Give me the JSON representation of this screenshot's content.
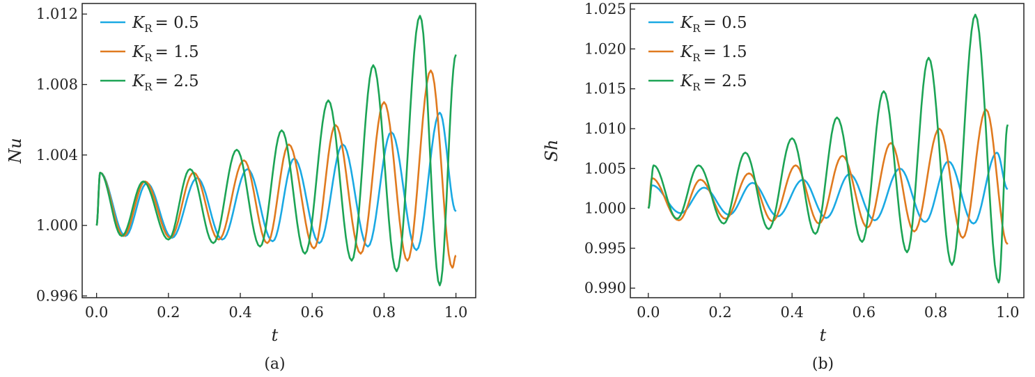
{
  "chart_data": [
    {
      "type": "line",
      "caption": "(a)",
      "xlabel": "t",
      "ylabel": "Nu",
      "xlim": [
        -0.04,
        1.055
      ],
      "ylim": [
        0.9959,
        1.0126
      ],
      "xticks": [
        0.0,
        0.2,
        0.4,
        0.6,
        0.8,
        1.0
      ],
      "xtick_labels": [
        "0.0",
        "0.2",
        "0.4",
        "0.6",
        "0.8",
        "1.0"
      ],
      "yticks": [
        0.996,
        1.0,
        1.004,
        1.008,
        1.012
      ],
      "ytick_labels": [
        "0.996",
        "1.000",
        "1.004",
        "1.008",
        "1.012"
      ],
      "legend_position": "top-left",
      "grid": false,
      "series": [
        {
          "name": "K_R = 0.5",
          "symbol": "K",
          "subscript": "R",
          "value": "0.5",
          "color": "#1aa9e3",
          "extrema": [
            [
              0,
              1.0
            ],
            [
              0.01,
              1.003
            ],
            [
              0.08,
              0.9994
            ],
            [
              0.14,
              1.0024
            ],
            [
              0.21,
              0.9993
            ],
            [
              0.28,
              1.0027
            ],
            [
              0.35,
              0.9992
            ],
            [
              0.42,
              1.0032
            ],
            [
              0.49,
              0.9991
            ],
            [
              0.55,
              1.0038
            ],
            [
              0.62,
              0.999
            ],
            [
              0.685,
              1.0046
            ],
            [
              0.755,
              0.9988
            ],
            [
              0.82,
              1.0053
            ],
            [
              0.89,
              0.9986
            ],
            [
              0.955,
              1.0064
            ],
            [
              1.0,
              1.0008
            ]
          ]
        },
        {
          "name": "K_R = 1.5",
          "symbol": "K",
          "subscript": "R",
          "value": "1.5",
          "color": "#e07a1f",
          "extrema": [
            [
              0,
              1.0
            ],
            [
              0.01,
              1.003
            ],
            [
              0.075,
              0.9994
            ],
            [
              0.135,
              1.0025
            ],
            [
              0.205,
              0.9993
            ],
            [
              0.27,
              1.003
            ],
            [
              0.34,
              0.9992
            ],
            [
              0.41,
              1.0037
            ],
            [
              0.475,
              0.999
            ],
            [
              0.535,
              1.0046
            ],
            [
              0.605,
              0.9987
            ],
            [
              0.665,
              1.0057
            ],
            [
              0.735,
              0.9984
            ],
            [
              0.8,
              1.007
            ],
            [
              0.865,
              0.998
            ],
            [
              0.93,
              1.0088
            ],
            [
              0.99,
              0.9976
            ],
            [
              1.0,
              0.9983
            ]
          ]
        },
        {
          "name": "K_R = 2.5",
          "symbol": "K",
          "subscript": "R",
          "value": "2.5",
          "color": "#1ca455",
          "extrema": [
            [
              0,
              1.0
            ],
            [
              0.01,
              1.003
            ],
            [
              0.07,
              0.9994
            ],
            [
              0.13,
              1.0025
            ],
            [
              0.2,
              0.9992
            ],
            [
              0.26,
              1.0032
            ],
            [
              0.325,
              0.999
            ],
            [
              0.39,
              1.0043
            ],
            [
              0.455,
              0.9988
            ],
            [
              0.515,
              1.0054
            ],
            [
              0.58,
              0.9984
            ],
            [
              0.645,
              1.0071
            ],
            [
              0.71,
              0.998
            ],
            [
              0.77,
              1.0091
            ],
            [
              0.835,
              0.9974
            ],
            [
              0.9,
              1.0119
            ],
            [
              0.955,
              0.9966
            ],
            [
              1.0,
              1.0097
            ]
          ]
        }
      ]
    },
    {
      "type": "line",
      "caption": "(b)",
      "xlabel": "t",
      "ylabel": "Sh",
      "xlim": [
        -0.05,
        1.045
      ],
      "ylim": [
        0.9888,
        1.0257
      ],
      "xticks": [
        0.0,
        0.2,
        0.4,
        0.6,
        0.8,
        1.0
      ],
      "xtick_labels": [
        "0.0",
        "0.2",
        "0.4",
        "0.6",
        "0.8",
        "1.0"
      ],
      "yticks": [
        0.99,
        0.995,
        1.0,
        1.005,
        1.01,
        1.015,
        1.02,
        1.025
      ],
      "ytick_labels": [
        "0.990",
        "0.995",
        "1.000",
        "1.005",
        "1.010",
        "1.015",
        "1.020",
        "1.025"
      ],
      "legend_position": "top-left",
      "grid": false,
      "series": [
        {
          "name": "K_R = 0.5",
          "symbol": "K",
          "subscript": "R",
          "value": "0.5",
          "color": "#1aa9e3",
          "extrema": [
            [
              0,
              1.0
            ],
            [
              0.01,
              1.0029
            ],
            [
              0.09,
              0.9994
            ],
            [
              0.155,
              1.0026
            ],
            [
              0.225,
              0.9992
            ],
            [
              0.29,
              1.0032
            ],
            [
              0.36,
              0.999
            ],
            [
              0.43,
              1.0036
            ],
            [
              0.495,
              0.9988
            ],
            [
              0.56,
              1.0043
            ],
            [
              0.63,
              0.9985
            ],
            [
              0.7,
              1.005
            ],
            [
              0.77,
              0.9983
            ],
            [
              0.835,
              1.0059
            ],
            [
              0.905,
              0.9981
            ],
            [
              0.97,
              1.007
            ],
            [
              1.0,
              1.0024
            ]
          ]
        },
        {
          "name": "K_R = 1.5",
          "symbol": "K",
          "subscript": "R",
          "value": "1.5",
          "color": "#e07a1f",
          "extrema": [
            [
              0,
              1.0
            ],
            [
              0.01,
              1.0038
            ],
            [
              0.085,
              0.9985
            ],
            [
              0.145,
              1.0036
            ],
            [
              0.215,
              0.9987
            ],
            [
              0.28,
              1.0044
            ],
            [
              0.345,
              0.9984
            ],
            [
              0.41,
              1.0054
            ],
            [
              0.475,
              0.9981
            ],
            [
              0.54,
              1.0066
            ],
            [
              0.61,
              0.9976
            ],
            [
              0.675,
              1.0082
            ],
            [
              0.74,
              0.9971
            ],
            [
              0.81,
              1.01
            ],
            [
              0.875,
              0.9963
            ],
            [
              0.94,
              1.0124
            ],
            [
              1.0,
              0.9955
            ]
          ]
        },
        {
          "name": "K_R = 2.5",
          "symbol": "K",
          "subscript": "R",
          "value": "2.5",
          "color": "#1ca455",
          "extrema": [
            [
              0,
              1.0
            ],
            [
              0.015,
              1.0054
            ],
            [
              0.08,
              0.9987
            ],
            [
              0.14,
              1.0054
            ],
            [
              0.21,
              0.9981
            ],
            [
              0.27,
              1.007
            ],
            [
              0.335,
              0.9974
            ],
            [
              0.4,
              1.0088
            ],
            [
              0.465,
              0.9968
            ],
            [
              0.525,
              1.0114
            ],
            [
              0.595,
              0.9958
            ],
            [
              0.655,
              1.0147
            ],
            [
              0.72,
              0.9945
            ],
            [
              0.78,
              1.0189
            ],
            [
              0.845,
              0.9929
            ],
            [
              0.91,
              1.0243
            ],
            [
              0.975,
              0.9907
            ],
            [
              1.0,
              1.0105
            ]
          ]
        }
      ]
    }
  ]
}
